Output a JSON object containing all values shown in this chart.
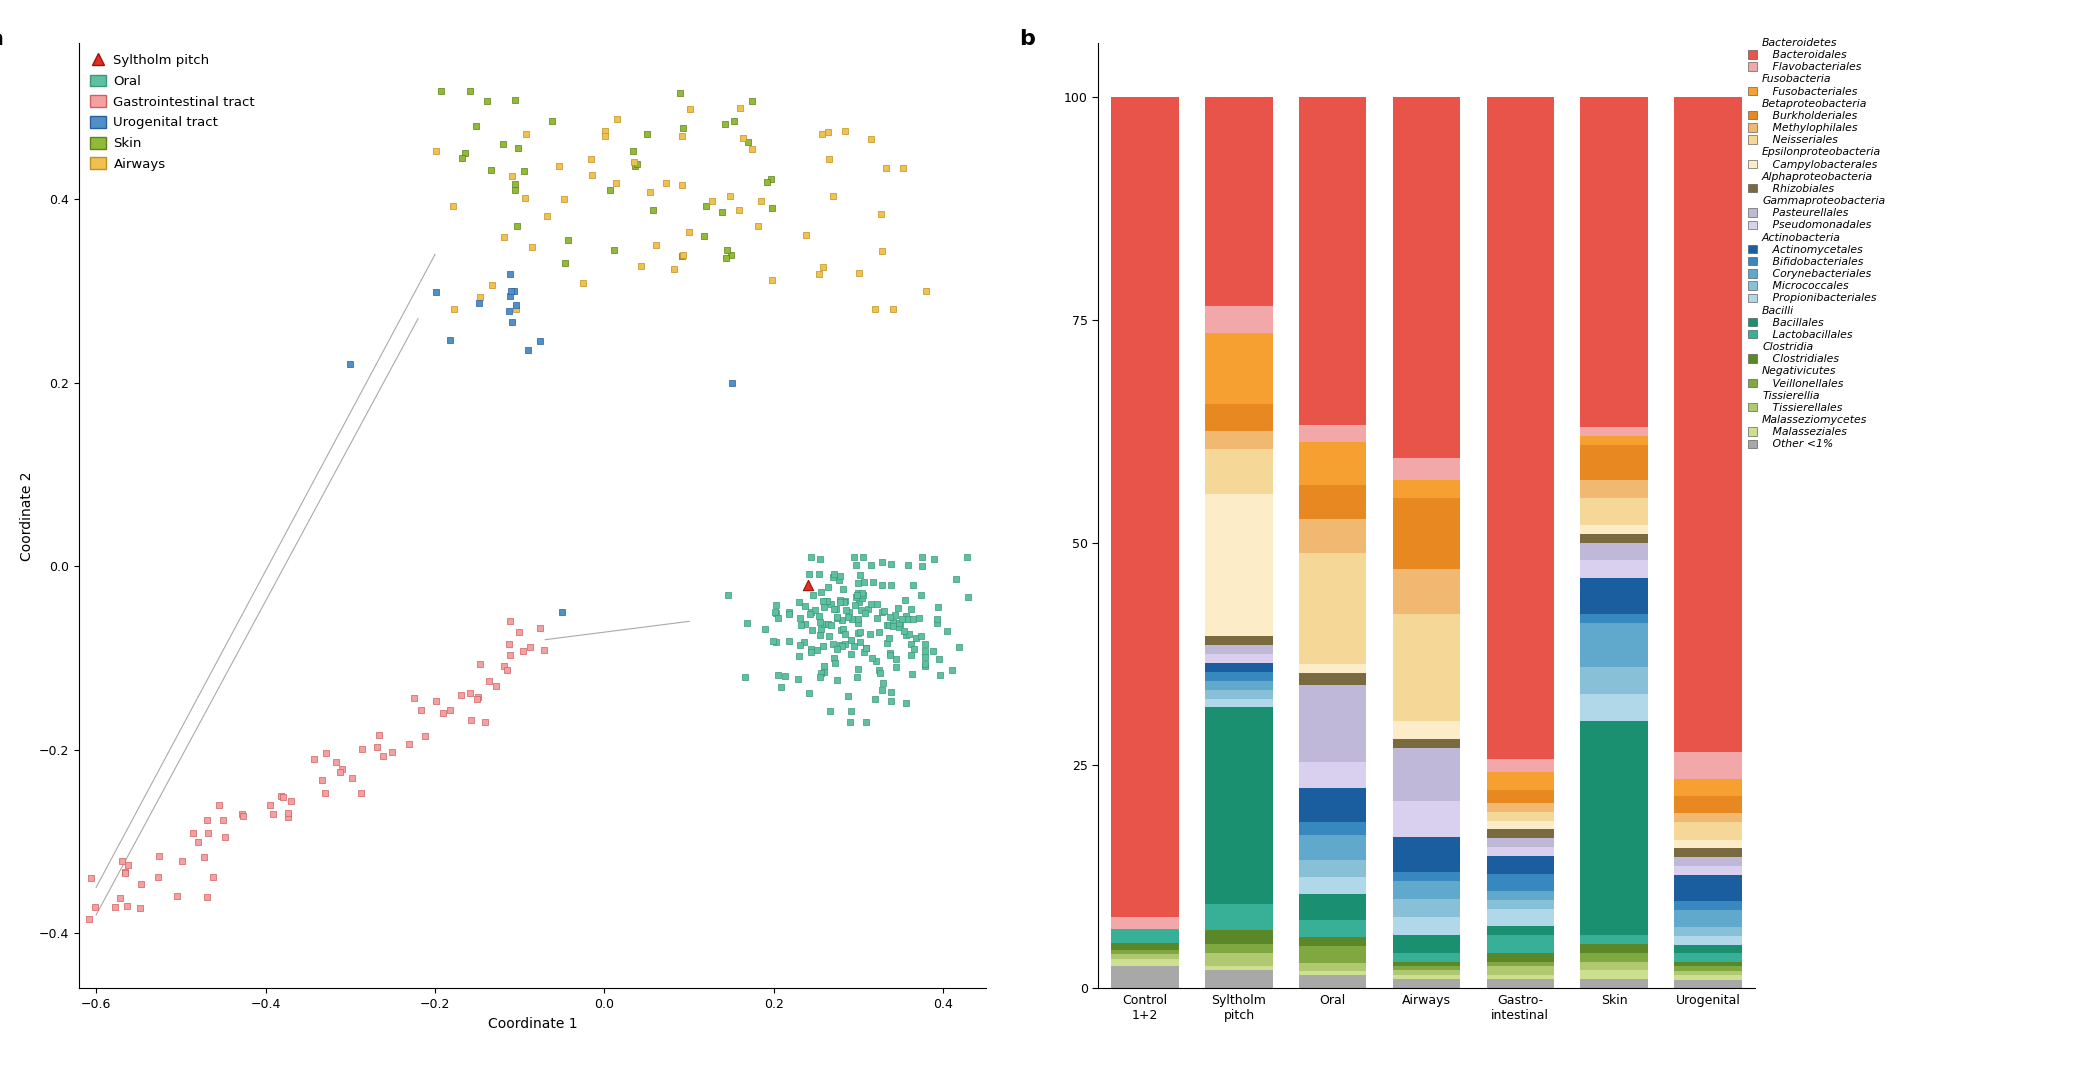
{
  "panel_b_categories": [
    "Control\n1+2",
    "Syltholm\npitch",
    "Oral",
    "Airways",
    "Gastro-\nintestinal",
    "Skin",
    "Urogenital"
  ],
  "colors": {
    "Bacteroidales": "#e8534a",
    "Flavobacteriales": "#f2a8a8",
    "Fusobacteriales": "#f5a030",
    "Burkholderiales": "#e88820",
    "Methylophilales": "#f0b870",
    "Neisseriales": "#f5d898",
    "Campylobacterales": "#fdecc8",
    "Rhizobiales": "#7a6a40",
    "Pasteurellales": "#c0b8d8",
    "Pseudomonadales": "#d8d0ee",
    "Actinomycetales": "#1a5ea0",
    "Bifidobacteriales": "#3888c0",
    "Corynebacteriales": "#60a8cc",
    "Micrococcales": "#88c0d8",
    "Propionibacteriales": "#b0d8e8",
    "Bacillales": "#1a9070",
    "Lactobacillales": "#38b098",
    "Clostridiales": "#5a8828",
    "Veillonellales": "#80a840",
    "Tissierellales": "#b0c870",
    "Malasseziales": "#cce090",
    "Other <1%": "#a8a8a8",
    "Control_base": "#8a8a58"
  },
  "stack_order_bottom_to_top": [
    "Other <1%",
    "Malasseziales",
    "Tissierellales",
    "Veillonellales",
    "Clostridiales",
    "Lactobacillales",
    "Bacillales",
    "Propionibacteriales",
    "Micrococcales",
    "Corynebacteriales",
    "Bifidobacteriales",
    "Actinomycetales",
    "Pseudomonadales",
    "Pasteurellales",
    "Rhizobiales",
    "Campylobacterales",
    "Neisseriales",
    "Methylophilales",
    "Burkholderiales",
    "Fusobacteriales",
    "Flavobacteriales",
    "Bacteroidales"
  ],
  "bar_data": {
    "Control\n1+2": {
      "Other <1%": 2.5,
      "Malasseziales": 0.8,
      "Tissierellales": 0.5,
      "Veillonellales": 0.5,
      "Clostridiales": 0.8,
      "Lactobacillales": 1.5,
      "Bacillales": 0.0,
      "Propionibacteriales": 0.0,
      "Micrococcales": 0.0,
      "Corynebacteriales": 0.0,
      "Bifidobacteriales": 0.0,
      "Actinomycetales": 0.0,
      "Pseudomonadales": 0.0,
      "Pasteurellales": 0.0,
      "Rhizobiales": 0.0,
      "Campylobacterales": 0.0,
      "Neisseriales": 0.0,
      "Methylophilales": 0.0,
      "Burkholderiales": 0.0,
      "Fusobacteriales": 0.0,
      "Flavobacteriales": 1.4,
      "Bacteroidales": 92.0
    },
    "Syltholm\npitch": {
      "Other <1%": 2.0,
      "Malasseziales": 0.5,
      "Tissierellales": 1.5,
      "Veillonellales": 1.0,
      "Clostridiales": 1.5,
      "Lactobacillales": 3.0,
      "Bacillales": 22.0,
      "Propionibacteriales": 1.0,
      "Micrococcales": 1.0,
      "Corynebacteriales": 1.0,
      "Bifidobacteriales": 1.0,
      "Actinomycetales": 1.0,
      "Pseudomonadales": 1.0,
      "Pasteurellales": 1.0,
      "Rhizobiales": 1.0,
      "Campylobacterales": 16.0,
      "Neisseriales": 5.0,
      "Methylophilales": 2.0,
      "Burkholderiales": 3.0,
      "Fusobacteriales": 8.0,
      "Flavobacteriales": 3.0,
      "Bacteroidales": 23.5
    },
    "Oral": {
      "Other <1%": 1.5,
      "Malasseziales": 0.5,
      "Tissierellales": 1.0,
      "Veillonellales": 2.0,
      "Clostridiales": 1.0,
      "Lactobacillales": 2.0,
      "Bacillales": 3.0,
      "Propionibacteriales": 2.0,
      "Micrococcales": 2.0,
      "Corynebacteriales": 3.0,
      "Bifidobacteriales": 1.5,
      "Actinomycetales": 4.0,
      "Pseudomonadales": 3.0,
      "Pasteurellales": 9.0,
      "Rhizobiales": 1.5,
      "Campylobacterales": 1.0,
      "Neisseriales": 13.0,
      "Methylophilales": 4.0,
      "Burkholderiales": 4.0,
      "Fusobacteriales": 5.0,
      "Flavobacteriales": 2.0,
      "Bacteroidales": 38.5
    },
    "Airways": {
      "Other <1%": 1.0,
      "Malasseziales": 0.5,
      "Tissierellales": 0.5,
      "Veillonellales": 0.5,
      "Clostridiales": 0.5,
      "Lactobacillales": 1.0,
      "Bacillales": 2.0,
      "Propionibacteriales": 2.0,
      "Micrococcales": 2.0,
      "Corynebacteriales": 2.0,
      "Bifidobacteriales": 1.0,
      "Actinomycetales": 4.0,
      "Pseudomonadales": 4.0,
      "Pasteurellales": 6.0,
      "Rhizobiales": 1.0,
      "Campylobacterales": 2.0,
      "Neisseriales": 12.0,
      "Methylophilales": 5.0,
      "Burkholderiales": 8.0,
      "Fusobacteriales": 2.0,
      "Flavobacteriales": 2.5,
      "Bacteroidales": 40.5
    },
    "Gastro-\nintestinal": {
      "Other <1%": 1.0,
      "Malasseziales": 0.5,
      "Tissierellales": 1.0,
      "Veillonellales": 0.5,
      "Clostridiales": 1.0,
      "Lactobacillales": 2.0,
      "Bacillales": 1.0,
      "Propionibacteriales": 2.0,
      "Micrococcales": 1.0,
      "Corynebacteriales": 1.0,
      "Bifidobacteriales": 2.0,
      "Actinomycetales": 2.0,
      "Pseudomonadales": 1.0,
      "Pasteurellales": 1.0,
      "Rhizobiales": 1.0,
      "Campylobacterales": 1.0,
      "Neisseriales": 1.0,
      "Methylophilales": 1.0,
      "Burkholderiales": 1.5,
      "Fusobacteriales": 2.0,
      "Flavobacteriales": 1.5,
      "Bacteroidales": 75.0
    },
    "Skin": {
      "Other <1%": 1.0,
      "Malasseziales": 1.0,
      "Tissierellales": 1.0,
      "Veillonellales": 1.0,
      "Clostridiales": 1.0,
      "Lactobacillales": 1.0,
      "Bacillales": 24.0,
      "Propionibacteriales": 3.0,
      "Micrococcales": 3.0,
      "Corynebacteriales": 5.0,
      "Bifidobacteriales": 1.0,
      "Actinomycetales": 4.0,
      "Pseudomonadales": 2.0,
      "Pasteurellales": 2.0,
      "Rhizobiales": 1.0,
      "Campylobacterales": 1.0,
      "Neisseriales": 3.0,
      "Methylophilales": 2.0,
      "Burkholderiales": 4.0,
      "Fusobacteriales": 1.0,
      "Flavobacteriales": 1.0,
      "Bacteroidales": 37.0
    },
    "Urogenital": {
      "Other <1%": 1.0,
      "Malasseziales": 0.5,
      "Tissierellales": 0.5,
      "Veillonellales": 0.5,
      "Clostridiales": 0.5,
      "Lactobacillales": 1.0,
      "Bacillales": 1.0,
      "Propionibacteriales": 1.0,
      "Micrococcales": 1.0,
      "Corynebacteriales": 2.0,
      "Bifidobacteriales": 1.0,
      "Actinomycetales": 3.0,
      "Pseudomonadales": 1.0,
      "Pasteurellales": 1.0,
      "Rhizobiales": 1.0,
      "Campylobacterales": 1.0,
      "Neisseriales": 2.0,
      "Methylophilales": 1.0,
      "Burkholderiales": 2.0,
      "Fusobacteriales": 2.0,
      "Flavobacteriales": 3.0,
      "Bacteroidales": 75.0
    }
  },
  "phylum_to_orders": {
    "Bacteroidetes": [
      "Bacteroidales",
      "Flavobacteriales"
    ],
    "Fusobacteria": [
      "Fusobacteriales"
    ],
    "Betaproteobacteria": [
      "Burkholderiales",
      "Methylophilales",
      "Neisseriales"
    ],
    "Epsilonproteobacteria": [
      "Campylobacterales"
    ],
    "Alphaproteobacteria": [
      "Rhizobiales"
    ],
    "Gammaproteobacteria": [
      "Pasteurellales",
      "Pseudomonadales"
    ],
    "Actinobacteria": [
      "Actinomycetales",
      "Bifidobacteriales",
      "Corynebacteriales",
      "Micrococcales",
      "Propionibacteriales"
    ],
    "Bacilli": [
      "Bacillales",
      "Lactobacillales"
    ],
    "Clostridia": [
      "Clostridiales"
    ],
    "Negativicutes": [
      "Veillonellales"
    ],
    "Tissierellia": [
      "Tissierellales"
    ],
    "Malasseziomycetes": [
      "Malasseziales",
      "Other <1%"
    ]
  },
  "phylum_order": [
    "Bacteroidetes",
    "Fusobacteria",
    "Betaproteobacteria",
    "Epsilonproteobacteria",
    "Alphaproteobacteria",
    "Gammaproteobacteria",
    "Actinobacteria",
    "Bacilli",
    "Clostridia",
    "Negativicutes",
    "Tissierellia",
    "Malasseziomycetes"
  ],
  "panel_a_xlabel": "Coordinate 1",
  "panel_a_ylabel": "Coordinate 2",
  "panel_a_xlim": [
    -0.62,
    0.45
  ],
  "panel_a_ylim": [
    -0.46,
    0.57
  ],
  "scatter_colors": {
    "Oral": "#5dc0a0",
    "Oral_edge": "#3a9878",
    "GI": "#f5a0a0",
    "GI_edge": "#d06060",
    "Skin": "#90ba38",
    "Skin_edge": "#608018",
    "Airways": "#f0c050",
    "Airways_edge": "#c09020",
    "Urogenital": "#5090c8",
    "Urogenital_edge": "#2860a0",
    "Syltholm": "#e03020",
    "Syltholm_edge": "#a01010"
  }
}
